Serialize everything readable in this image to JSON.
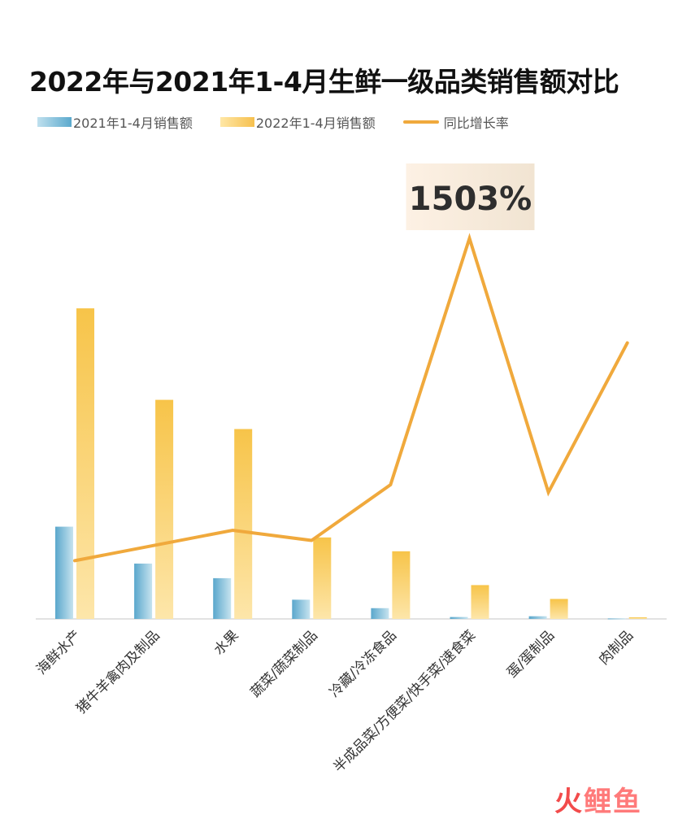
{
  "chart_data": {
    "type": "bar",
    "title": "2022年与2021年1-4月生鲜一级品类销售额对比",
    "categories": [
      "海鲜水产",
      "猪牛羊禽肉及制品",
      "水果",
      "蔬菜/蔬菜制品",
      "冷藏/冷冻食品",
      "半成品菜/方便菜/快手菜/速食菜",
      "蛋/蛋制品",
      "肉制品"
    ],
    "series": [
      {
        "name": "2021年1-4月销售额",
        "type": "bar",
        "values": [
          120,
          72,
          53,
          25,
          14,
          2.5,
          3.5,
          0.6
        ]
      },
      {
        "name": "2022年1-4月销售额",
        "type": "bar",
        "values": [
          404,
          285,
          247,
          106,
          88,
          44,
          26,
          2.2
        ]
      },
      {
        "name": "同比增长率",
        "type": "line",
        "values": [
          230,
          290,
          350,
          310,
          530,
          1503,
          500,
          1090
        ]
      }
    ],
    "ylim": [
      0,
      420
    ],
    "ylim_right": [
      0,
      2200
    ],
    "annotation": "1503%",
    "colors": {
      "bar2021": "#7fbbd8",
      "bar2022": "#f8c650",
      "line": "#f0a93c"
    },
    "legend_position": "top-left"
  },
  "watermark": {
    "char1": "火",
    "char2": "鲤鱼"
  }
}
